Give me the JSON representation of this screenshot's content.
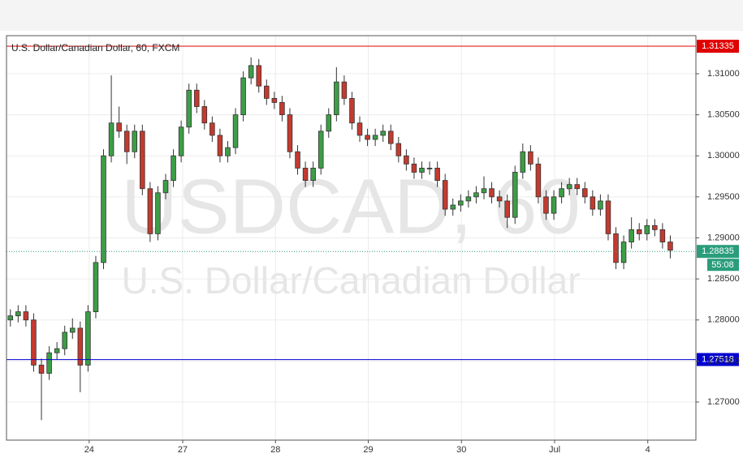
{
  "chart_data": {
    "type": "candlestick",
    "title": "U.S. Dollar/Canadian Dollar, 60, FXCM",
    "watermark": [
      "USDCAD, 60",
      "U.S. Dollar/Canadian Dollar"
    ],
    "up_color": "#3c9e46",
    "down_color": "#c43a2f",
    "grid": true,
    "xlim": [
      0,
      177.6
    ],
    "ylim": [
      1.26536,
      1.31464
    ],
    "xticks": [
      {
        "value": 21.3,
        "label": "24"
      },
      {
        "value": 45.4,
        "label": "27"
      },
      {
        "value": 69.3,
        "label": "28"
      },
      {
        "value": 93.2,
        "label": "29"
      },
      {
        "value": 117.2,
        "label": "30"
      },
      {
        "value": 141.2,
        "label": "Jul"
      },
      {
        "value": 165.2,
        "label": "4"
      }
    ],
    "yticks": [
      {
        "value": 1.27,
        "label": "1.27000"
      },
      {
        "value": 1.275,
        "label": "1.27500"
      },
      {
        "value": 1.28,
        "label": "1.28000"
      },
      {
        "value": 1.285,
        "label": "1.28500"
      },
      {
        "value": 1.29,
        "label": "1.29000"
      },
      {
        "value": 1.295,
        "label": "1.29500"
      },
      {
        "value": 1.3,
        "label": "1.30000"
      },
      {
        "value": 1.305,
        "label": "1.30500"
      },
      {
        "value": 1.31,
        "label": "1.31000"
      }
    ],
    "hlines": [
      {
        "value": 1.31335,
        "color": "#e00000",
        "style": "solid"
      },
      {
        "value": 1.27518,
        "color": "#0000d0",
        "style": "solid"
      },
      {
        "value": 1.28835,
        "color": "#2a9d7a",
        "style": "dotted"
      }
    ],
    "countdown": "55:08",
    "x": [
      1,
      3,
      5,
      7,
      9,
      11,
      13,
      15,
      17,
      19,
      21,
      23,
      25,
      27,
      29,
      31,
      33,
      35,
      37,
      39,
      41,
      43,
      45,
      47,
      49,
      51,
      53,
      55,
      57,
      59,
      61,
      63,
      65,
      67,
      69,
      71,
      73,
      75,
      77,
      79,
      81,
      83,
      85,
      87,
      89,
      91,
      93,
      95,
      97,
      99,
      101,
      103,
      105,
      107,
      109,
      111,
      113,
      115,
      117,
      119,
      121,
      123,
      125,
      127,
      129,
      131,
      133,
      135,
      137,
      139,
      141,
      143,
      145,
      147,
      149,
      151,
      153,
      155,
      157,
      159,
      161,
      163,
      165,
      167,
      169,
      171
    ],
    "open": [
      1.28,
      1.2805,
      1.281,
      1.28,
      1.2745,
      1.2735,
      1.276,
      1.2765,
      1.2785,
      1.279,
      1.2745,
      1.281,
      1.287,
      1.3,
      1.304,
      1.303,
      1.3005,
      1.303,
      1.296,
      1.2905,
      1.2955,
      1.297,
      1.3,
      1.3035,
      1.308,
      1.306,
      1.304,
      1.3025,
      1.3,
      1.301,
      1.305,
      1.3095,
      1.311,
      1.3085,
      1.307,
      1.3065,
      1.305,
      1.3005,
      1.2985,
      1.297,
      1.2985,
      1.303,
      1.305,
      1.309,
      1.307,
      1.304,
      1.3025,
      1.302,
      1.3025,
      1.303,
      1.3015,
      1.3,
      1.299,
      1.298,
      1.2985,
      1.2985,
      1.297,
      1.2935,
      1.294,
      1.2945,
      1.295,
      1.2955,
      1.296,
      1.295,
      1.2945,
      1.2925,
      1.298,
      1.3005,
      1.299,
      1.295,
      1.293,
      1.295,
      1.296,
      1.2965,
      1.296,
      1.295,
      1.2935,
      1.2945,
      1.2905,
      1.287,
      1.2895,
      1.291,
      1.2905,
      1.2915,
      1.291,
      1.2895
    ],
    "high": [
      1.2813,
      1.2818,
      1.2818,
      1.2808,
      1.2753,
      1.2768,
      1.2773,
      1.2793,
      1.2802,
      1.2798,
      1.2818,
      1.2878,
      1.3008,
      1.3098,
      1.306,
      1.3038,
      1.3038,
      1.3038,
      1.2968,
      1.2963,
      1.2978,
      1.3008,
      1.3043,
      1.3088,
      1.3088,
      1.3068,
      1.3048,
      1.3033,
      1.3018,
      1.3058,
      1.3103,
      1.312,
      1.3118,
      1.3093,
      1.3078,
      1.3073,
      1.3058,
      1.3013,
      1.2993,
      1.2993,
      1.3038,
      1.3058,
      1.3108,
      1.3098,
      1.3078,
      1.3048,
      1.3033,
      1.3033,
      1.3038,
      1.3038,
      1.3023,
      1.3008,
      1.2998,
      1.2993,
      1.2993,
      1.2993,
      1.2978,
      1.2948,
      1.2953,
      1.2958,
      1.2963,
      1.2975,
      1.2968,
      1.2958,
      1.2953,
      1.2988,
      1.3015,
      1.3013,
      1.2998,
      1.2958,
      1.2958,
      1.2968,
      1.2973,
      1.2973,
      1.2968,
      1.2958,
      1.2953,
      1.2953,
      1.2913,
      1.2903,
      1.2925,
      1.2918,
      1.2923,
      1.2923,
      1.2918,
      1.2903
    ],
    "low": [
      1.2792,
      1.2797,
      1.2792,
      1.2737,
      1.2678,
      1.2727,
      1.2752,
      1.2757,
      1.2777,
      1.2712,
      1.2737,
      1.2802,
      1.2862,
      1.2992,
      1.3022,
      1.299,
      1.2997,
      1.2952,
      1.2895,
      1.2897,
      1.2947,
      1.2962,
      1.2992,
      1.3027,
      1.3052,
      1.3032,
      1.3017,
      1.2992,
      1.2992,
      1.3002,
      1.3042,
      1.3087,
      1.3077,
      1.3062,
      1.3057,
      1.3042,
      1.2997,
      1.2977,
      1.2962,
      1.2962,
      1.2977,
      1.3022,
      1.3042,
      1.3062,
      1.3032,
      1.3017,
      1.3012,
      1.3012,
      1.3017,
      1.3007,
      1.2992,
      1.2982,
      1.2972,
      1.2972,
      1.2977,
      1.2962,
      1.2927,
      1.2927,
      1.2932,
      1.2937,
      1.2942,
      1.2947,
      1.2942,
      1.2937,
      1.2912,
      1.2917,
      1.2972,
      1.2982,
      1.2942,
      1.2922,
      1.2922,
      1.2942,
      1.2952,
      1.2952,
      1.2942,
      1.2927,
      1.2927,
      1.2897,
      1.2862,
      1.2862,
      1.2887,
      1.2897,
      1.2897,
      1.2902,
      1.2887,
      1.2875
    ],
    "close": [
      1.2805,
      1.281,
      1.28,
      1.2745,
      1.2735,
      1.276,
      1.2765,
      1.2785,
      1.279,
      1.2745,
      1.281,
      1.287,
      1.3,
      1.304,
      1.303,
      1.3005,
      1.303,
      1.296,
      1.2905,
      1.2955,
      1.297,
      1.3,
      1.3035,
      1.308,
      1.306,
      1.304,
      1.3025,
      1.3,
      1.301,
      1.305,
      1.3095,
      1.311,
      1.3085,
      1.307,
      1.3065,
      1.305,
      1.3005,
      1.2985,
      1.297,
      1.2985,
      1.303,
      1.305,
      1.309,
      1.307,
      1.304,
      1.3025,
      1.302,
      1.3025,
      1.303,
      1.3015,
      1.3,
      1.299,
      1.298,
      1.2985,
      1.2985,
      1.297,
      1.2935,
      1.294,
      1.2945,
      1.295,
      1.2955,
      1.296,
      1.295,
      1.2945,
      1.2925,
      1.298,
      1.3005,
      1.299,
      1.295,
      1.293,
      1.295,
      1.296,
      1.2965,
      1.296,
      1.295,
      1.2935,
      1.2945,
      1.2905,
      1.287,
      1.2895,
      1.291,
      1.2905,
      1.2915,
      1.291,
      1.2895,
      1.2885
    ]
  }
}
